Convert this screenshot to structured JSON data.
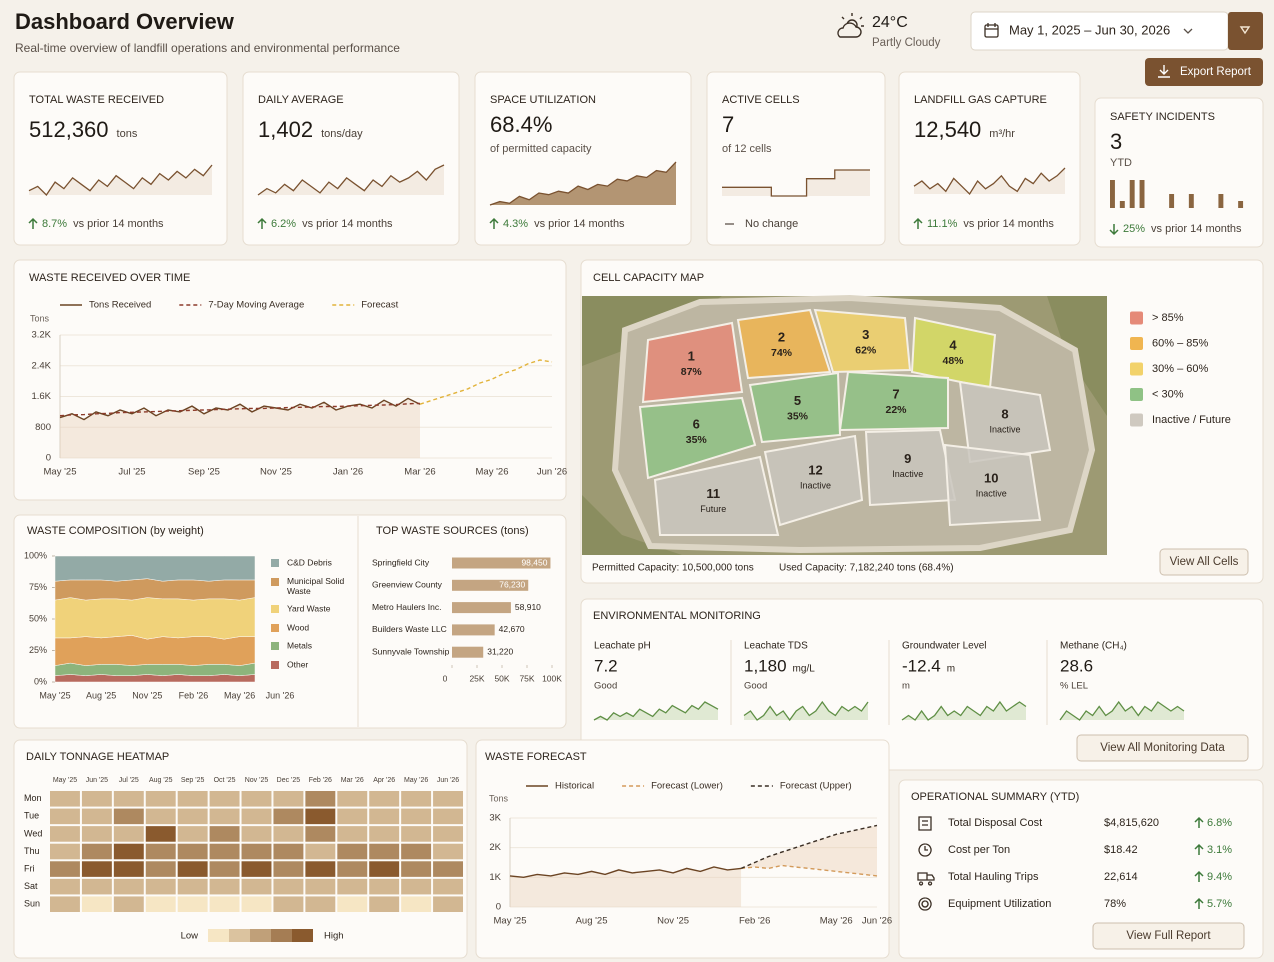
{
  "header": {
    "title": "Dashboard Overview",
    "subtitle": "Real-time overview of landfill operations and environmental performance",
    "temp": "24°C",
    "weather": "Partly Cloudy",
    "date_range": "May 1, 2025 – Jun 30, 2026",
    "export": "Export Report"
  },
  "kpis": [
    {
      "title": "TOTAL WASTE RECEIVED",
      "value": "512,360",
      "unit": "tons",
      "change": "8.7%",
      "change_text": "vs prior 14 months",
      "trend": "up",
      "spark_style": "line",
      "spark": [
        40,
        42,
        38,
        44,
        41,
        46,
        43,
        40,
        45,
        42,
        47,
        44,
        41,
        46,
        43,
        48,
        45,
        49,
        46,
        50,
        47,
        52
      ]
    },
    {
      "title": "DAILY AVERAGE",
      "value": "1,402",
      "unit": "tons/day",
      "change": "6.2%",
      "change_text": "vs prior 14 months",
      "trend": "up",
      "spark_style": "line",
      "spark": [
        38,
        41,
        39,
        43,
        40,
        45,
        42,
        39,
        44,
        41,
        46,
        43,
        40,
        45,
        42,
        47,
        44,
        46,
        49,
        45,
        50,
        52
      ]
    },
    {
      "title": "SPACE UTILIZATION",
      "value": "68.4%",
      "note": "of permitted capacity",
      "change": "4.3%",
      "change_text": "vs prior 14 months",
      "trend": "up",
      "spark_style": "area",
      "spark": [
        55,
        57,
        56,
        60,
        58,
        62,
        61,
        63,
        62,
        66,
        64,
        67,
        66,
        70,
        69,
        72,
        71,
        75,
        74,
        80
      ]
    },
    {
      "title": "ACTIVE CELLS",
      "value": "7",
      "note": "of 12 cells",
      "change_text": "No change",
      "trend": "flat",
      "spark_style": "step",
      "spark": [
        5,
        5,
        5,
        5,
        5,
        5,
        5,
        4,
        4,
        4,
        4,
        4,
        6,
        6,
        6,
        6,
        7,
        7,
        7,
        7,
        7,
        7
      ]
    },
    {
      "title": "LANDFILL GAS CAPTURE",
      "value": "12,540",
      "unit": "m³/hr",
      "change": "11.1%",
      "change_text": "vs prior 14 months",
      "trend": "up",
      "spark_style": "line",
      "spark": [
        44,
        46,
        43,
        45,
        42,
        47,
        44,
        41,
        46,
        43,
        45,
        48,
        44,
        42,
        47,
        45,
        49,
        46,
        48,
        51
      ]
    },
    {
      "title": "SAFETY INCIDENTS",
      "value": "3",
      "note": "YTD",
      "change": "25%",
      "change_text": "vs prior 14 months",
      "trend": "down",
      "spark_style": "bars",
      "spark": [
        4,
        1,
        4,
        4,
        0,
        0,
        2,
        0,
        2,
        0,
        0,
        2,
        0,
        1
      ]
    }
  ],
  "chart_data": [
    {
      "type": "line",
      "title": "WASTE RECEIVED OVER TIME",
      "y_label": "Tons",
      "categories": [
        "May '25",
        null,
        null,
        null,
        null,
        null,
        "Jul '25",
        null,
        null,
        null,
        null,
        null,
        "Sep '25",
        null,
        null,
        null,
        null,
        null,
        "Nov '25",
        null,
        null,
        null,
        null,
        null,
        "Jan '26",
        null,
        null,
        null,
        null,
        null,
        "Mar '26",
        null,
        null,
        null,
        null,
        null,
        "May '26",
        null,
        null,
        null,
        null,
        "Jun '26"
      ],
      "series": [
        {
          "name": "Tons Received",
          "color": "#6b4423",
          "area": true,
          "values": [
            1050,
            1150,
            1000,
            1200,
            1100,
            1250,
            1150,
            1300,
            1100,
            1250,
            1200,
            1350,
            1150,
            1300,
            1250,
            1400,
            1200,
            1350,
            1300,
            1250,
            1400,
            1300,
            1450,
            1250,
            1350,
            1400,
            1300,
            1500,
            1350,
            1550,
            1400,
            null,
            null,
            null,
            null,
            null,
            null,
            null,
            null,
            null,
            null,
            null
          ]
        },
        {
          "name": "7-Day Moving Average",
          "color": "#8c3b2a",
          "dash": true,
          "values": [
            1100,
            1120,
            1130,
            1150,
            1160,
            1180,
            1190,
            1200,
            1210,
            1220,
            1230,
            1240,
            1250,
            1260,
            1270,
            1280,
            1290,
            1290,
            1300,
            1310,
            1320,
            1330,
            1340,
            1340,
            1350,
            1360,
            1370,
            1380,
            1390,
            1410,
            1420,
            null,
            null,
            null,
            null,
            null,
            null,
            null,
            null,
            null,
            null,
            null
          ]
        },
        {
          "name": "Forecast",
          "color": "#e2b33a",
          "dash": true,
          "values": [
            null,
            null,
            null,
            null,
            null,
            null,
            null,
            null,
            null,
            null,
            null,
            null,
            null,
            null,
            null,
            null,
            null,
            null,
            null,
            null,
            null,
            null,
            null,
            null,
            null,
            null,
            null,
            null,
            null,
            null,
            1400,
            1500,
            1600,
            1700,
            1800,
            1950,
            2050,
            2200,
            2300,
            2450,
            2550,
            2500
          ]
        }
      ],
      "ylim": [
        0,
        3200
      ],
      "yticks": [
        0,
        800,
        {
          "value": 1600,
          "label": "1.6K"
        },
        {
          "value": 2400,
          "label": "2.4K"
        },
        {
          "value": 3200,
          "label": "3.2K"
        }
      ],
      "grid": true
    },
    {
      "type": "stacked_area",
      "title": "WASTE COMPOSITION (by weight)",
      "categories": [
        "May '25",
        null,
        null,
        "Aug '25",
        null,
        null,
        "Nov '25",
        null,
        null,
        "Feb '26",
        null,
        null,
        "May '26",
        "Jun '26"
      ],
      "series": [
        {
          "name": "C&D Debris",
          "color": "#93aaa6",
          "values": [
            20,
            19,
            19,
            19,
            20,
            19,
            18,
            20,
            19,
            19,
            20,
            19,
            19,
            19
          ]
        },
        {
          "name": "Municipal Solid Waste",
          "color": "#cf9a5e",
          "values": [
            15,
            14,
            16,
            15,
            14,
            16,
            15,
            14,
            15,
            16,
            14,
            15,
            16,
            14
          ]
        },
        {
          "name": "Yard Waste",
          "color": "#f0d27a",
          "values": [
            30,
            32,
            29,
            31,
            30,
            28,
            33,
            30,
            31,
            29,
            30,
            32,
            29,
            31
          ]
        },
        {
          "name": "Wood",
          "color": "#e0a15a",
          "values": [
            22,
            20,
            23,
            21,
            22,
            24,
            20,
            22,
            21,
            23,
            22,
            20,
            23,
            21
          ]
        },
        {
          "name": "Metals",
          "color": "#8db47c",
          "values": [
            8,
            9,
            8,
            8,
            9,
            8,
            8,
            9,
            8,
            8,
            9,
            8,
            8,
            9
          ]
        },
        {
          "name": "Other",
          "color": "#b86a5e",
          "values": [
            5,
            6,
            5,
            6,
            5,
            5,
            6,
            5,
            6,
            5,
            5,
            6,
            5,
            6
          ]
        }
      ],
      "ylim": [
        0,
        100
      ],
      "yticks": [
        {
          "value": 0,
          "label": "0%"
        },
        {
          "value": 25,
          "label": "25%"
        },
        {
          "value": 50,
          "label": "50%"
        },
        {
          "value": 75,
          "label": "75%"
        },
        {
          "value": 100,
          "label": "100%"
        }
      ]
    },
    {
      "type": "hbar",
      "title": "TOP WASTE SOURCES (tons)",
      "color": "#c4a582",
      "categories": [
        "Springfield City",
        "Greenview County",
        "Metro Haulers Inc.",
        "Builders Waste LLC",
        "Sunnyvale Township"
      ],
      "values": [
        98450,
        76230,
        58910,
        42670,
        31220
      ],
      "value_labels": [
        "98,450",
        "76,230",
        "58,910",
        "42,670",
        "31,220"
      ],
      "xlim": [
        0,
        100000
      ],
      "xticks": [
        0,
        {
          "value": 25000,
          "label": "25K"
        },
        {
          "value": 50000,
          "label": "50K"
        },
        {
          "value": 75000,
          "label": "75K"
        },
        {
          "value": 100000,
          "label": "100K"
        }
      ]
    },
    {
      "type": "heatmap",
      "title": "DAILY TONNAGE HEATMAP",
      "rows": [
        "Mon",
        "Tue",
        "Wed",
        "Thu",
        "Fri",
        "Sat",
        "Sun"
      ],
      "columns": [
        "May '25",
        "Jun '25",
        "Jul '25",
        "Aug '25",
        "Sep '25",
        "Oct '25",
        "Nov '25",
        "Dec '25",
        "Feb '26",
        "Mar '26",
        "Apr '26",
        "May '26",
        "Jun '26"
      ],
      "values": [
        [
          2,
          2,
          2,
          2,
          2,
          2,
          2,
          2,
          3,
          2,
          2,
          2,
          2
        ],
        [
          2,
          2,
          3,
          2,
          2,
          2,
          2,
          3,
          4,
          2,
          2,
          2,
          2
        ],
        [
          2,
          2,
          2,
          4,
          2,
          3,
          2,
          2,
          3,
          2,
          2,
          2,
          2
        ],
        [
          2,
          3,
          4,
          3,
          3,
          3,
          3,
          3,
          2,
          3,
          3,
          3,
          2
        ],
        [
          3,
          4,
          4,
          3,
          4,
          3,
          4,
          3,
          4,
          3,
          4,
          3,
          3
        ],
        [
          2,
          2,
          2,
          2,
          2,
          2,
          2,
          2,
          2,
          2,
          2,
          2,
          2
        ],
        [
          2,
          1,
          2,
          1,
          1,
          1,
          1,
          2,
          2,
          1,
          2,
          1,
          2
        ]
      ],
      "color_low": "#f6e6c4",
      "color_high": "#8a5a2e",
      "legend_low": "Low",
      "legend_high": "High"
    },
    {
      "type": "line",
      "title": "WASTE FORECAST",
      "y_label": "Tons",
      "band": true,
      "categories": [
        "May '25",
        null,
        null,
        null,
        null,
        null,
        "Aug '25",
        null,
        null,
        null,
        null,
        null,
        "Nov '25",
        null,
        null,
        null,
        null,
        null,
        "Feb '26",
        null,
        null,
        null,
        null,
        null,
        "May '26",
        null,
        null,
        "Jun '26"
      ],
      "series": [
        {
          "name": "Historical",
          "color": "#6b4423",
          "area": true,
          "values": [
            1050,
            1000,
            1100,
            1050,
            1150,
            1100,
            1200,
            1100,
            1250,
            1150,
            1200,
            1250,
            1150,
            1300,
            1200,
            1350,
            1250,
            1300,
            null,
            null,
            null,
            null,
            null,
            null,
            null,
            null,
            null,
            null
          ]
        },
        {
          "name": "Forecast (Lower)",
          "color": "#d39a5a",
          "dash": true,
          "values": [
            null,
            null,
            null,
            null,
            null,
            null,
            null,
            null,
            null,
            null,
            null,
            null,
            null,
            null,
            null,
            null,
            null,
            1300,
            1350,
            1300,
            1400,
            1350,
            1300,
            1250,
            1200,
            1150,
            1100,
            1050
          ]
        },
        {
          "name": "Forecast (Upper)",
          "color": "#3a2e24",
          "dash": true,
          "values": [
            null,
            null,
            null,
            null,
            null,
            null,
            null,
            null,
            null,
            null,
            null,
            null,
            null,
            null,
            null,
            null,
            null,
            1300,
            1500,
            1700,
            1850,
            2000,
            2150,
            2300,
            2450,
            2550,
            2650,
            2750
          ]
        }
      ],
      "ylim": [
        0,
        3000
      ],
      "yticks": [
        0,
        {
          "value": 1000,
          "label": "1K"
        },
        {
          "value": 2000,
          "label": "2K"
        },
        {
          "value": 3000,
          "label": "3K"
        }
      ],
      "grid": true
    }
  ],
  "cell_map": {
    "title": "CELL CAPACITY MAP",
    "cells": [
      {
        "id": "1",
        "label": "87%",
        "color": "#e58a78"
      },
      {
        "id": "2",
        "label": "74%",
        "color": "#f0b550"
      },
      {
        "id": "3",
        "label": "62%",
        "color": "#f2d26a"
      },
      {
        "id": "4",
        "label": "48%",
        "color": "#d6dc5e"
      },
      {
        "id": "5",
        "label": "35%",
        "color": "#8fc285"
      },
      {
        "id": "6",
        "label": "35%",
        "color": "#8fc285"
      },
      {
        "id": "7",
        "label": "22%",
        "color": "#8fc285"
      },
      {
        "id": "8",
        "label": "Inactive",
        "color": "#c9c5bd"
      },
      {
        "id": "9",
        "label": "Inactive",
        "color": "#c9c5bd"
      },
      {
        "id": "10",
        "label": "Inactive",
        "color": "#c9c5bd"
      },
      {
        "id": "11",
        "label": "Future",
        "color": "#c9c5bd"
      },
      {
        "id": "12",
        "label": "Inactive",
        "color": "#c9c5bd"
      }
    ],
    "legend": [
      {
        "label": "> 85%",
        "color": "#e58a78"
      },
      {
        "label": "60% – 85%",
        "color": "#f0b550"
      },
      {
        "label": "30% – 60%",
        "color": "#f2d26a"
      },
      {
        "label": "< 30%",
        "color": "#8fc285"
      },
      {
        "label": "Inactive / Future",
        "color": "#cfc9c0"
      }
    ],
    "permitted": "Permitted Capacity: 10,500,000 tons",
    "used": "Used Capacity: 7,182,240 tons (68.4%)",
    "button": "View All Cells"
  },
  "monitoring": {
    "title": "ENVIRONMENTAL MONITORING",
    "items": [
      {
        "label": "Leachate pH",
        "value": "7.2",
        "status": "Good",
        "spark": [
          3,
          4,
          3,
          5,
          4,
          5,
          4,
          6,
          5,
          4,
          6,
          5,
          7,
          6,
          5,
          7,
          6,
          8,
          7,
          6
        ]
      },
      {
        "label": "Leachate TDS",
        "value": "1,180",
        "unit": "mg/L",
        "status": "Good",
        "spark": [
          4,
          5,
          3,
          4,
          6,
          4,
          5,
          3,
          5,
          6,
          4,
          5,
          7,
          5,
          4,
          6,
          5,
          6,
          5,
          7
        ]
      },
      {
        "label": "Groundwater Level",
        "value": "-12.4",
        "unit": "m",
        "status": "m",
        "spark": [
          3,
          4,
          3,
          5,
          3,
          4,
          6,
          4,
          5,
          4,
          6,
          5,
          4,
          6,
          5,
          7,
          5,
          6,
          7,
          6
        ]
      },
      {
        "label": "Methane (CH₄)",
        "value": "28.6",
        "status": "% LEL",
        "spark": [
          3,
          5,
          4,
          3,
          5,
          4,
          6,
          4,
          5,
          7,
          5,
          6,
          4,
          6,
          5,
          7,
          6,
          5,
          6,
          5
        ]
      }
    ],
    "button": "View All Monitoring Data"
  },
  "operations": {
    "title": "OPERATIONAL SUMMARY (YTD)",
    "rows": [
      {
        "label": "Total Disposal Cost",
        "value": "$4,815,620",
        "change": "6.8%"
      },
      {
        "label": "Cost per Ton",
        "value": "$18.42",
        "change": "3.1%"
      },
      {
        "label": "Total Hauling Trips",
        "value": "22,614",
        "change": "9.4%"
      },
      {
        "label": "Equipment Utilization",
        "value": "78%",
        "change": "5.7%"
      }
    ],
    "button": "View Full Report"
  }
}
